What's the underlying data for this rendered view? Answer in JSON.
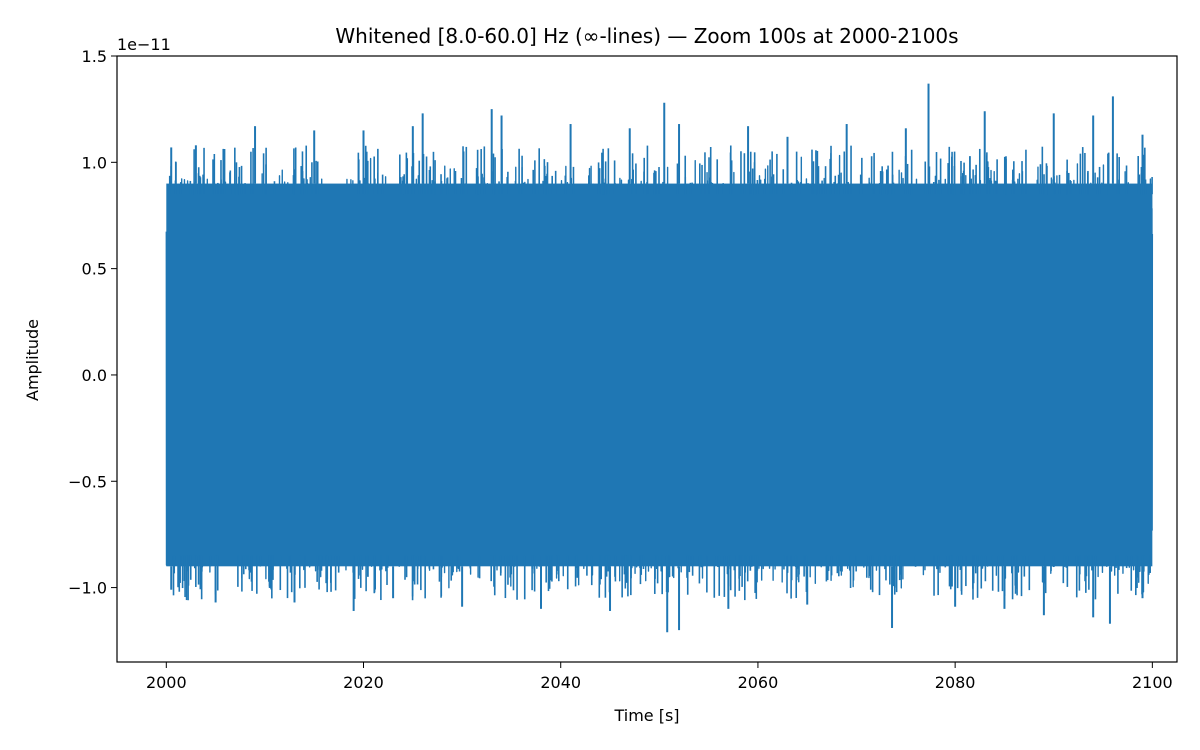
{
  "chart_data": {
    "type": "line",
    "title": "Whitened [8.0-60.0] Hz (∞-lines) — Zoom 100s at 2000-2100s",
    "xlabel": "Time [s]",
    "ylabel": "Amplitude",
    "offset_label": "1e−11",
    "xlim": [
      1995,
      2102.5
    ],
    "ylim": [
      -1.35,
      1.5
    ],
    "y_scale_factor": "1e-11",
    "xticks": [
      2000,
      2020,
      2040,
      2060,
      2080,
      2100
    ],
    "xtick_labels": [
      "2000",
      "2020",
      "2040",
      "2060",
      "2080",
      "2100"
    ],
    "yticks": [
      -1.0,
      -0.5,
      0.0,
      0.5,
      1.0,
      1.5
    ],
    "ytick_labels": [
      "−1.0",
      "−0.5",
      "0.0",
      "0.5",
      "1.0",
      "1.5"
    ],
    "grid": false,
    "series": [
      {
        "color": "#1f77b4",
        "x_range": [
          2000,
          2100
        ],
        "typical_envelope": [
          -0.9,
          0.9
        ],
        "peaks": [
          {
            "x": 2000.5,
            "y": 1.07
          },
          {
            "x": 2003,
            "y": 1.08
          },
          {
            "x": 2009,
            "y": 1.17
          },
          {
            "x": 2015,
            "y": 1.15
          },
          {
            "x": 2020,
            "y": 1.15
          },
          {
            "x": 2025,
            "y": 1.17
          },
          {
            "x": 2026,
            "y": 1.23
          },
          {
            "x": 2033,
            "y": 1.25
          },
          {
            "x": 2034,
            "y": 1.22
          },
          {
            "x": 2041,
            "y": 1.18
          },
          {
            "x": 2047,
            "y": 1.16
          },
          {
            "x": 2050.5,
            "y": 1.28
          },
          {
            "x": 2052,
            "y": 1.18
          },
          {
            "x": 2059,
            "y": 1.17
          },
          {
            "x": 2063,
            "y": 1.12
          },
          {
            "x": 2069,
            "y": 1.18
          },
          {
            "x": 2075,
            "y": 1.16
          },
          {
            "x": 2077.3,
            "y": 1.37
          },
          {
            "x": 2083,
            "y": 1.24
          },
          {
            "x": 2090,
            "y": 1.23
          },
          {
            "x": 2094,
            "y": 1.22
          },
          {
            "x": 2096,
            "y": 1.31
          },
          {
            "x": 2099,
            "y": 1.13
          }
        ],
        "troughs": [
          {
            "x": 2000.5,
            "y": -1.01
          },
          {
            "x": 2005,
            "y": -1.07
          },
          {
            "x": 2013,
            "y": -1.07
          },
          {
            "x": 2019,
            "y": -1.11
          },
          {
            "x": 2023,
            "y": -1.05
          },
          {
            "x": 2030,
            "y": -1.09
          },
          {
            "x": 2038,
            "y": -1.1
          },
          {
            "x": 2045,
            "y": -1.11
          },
          {
            "x": 2050.8,
            "y": -1.21
          },
          {
            "x": 2052,
            "y": -1.2
          },
          {
            "x": 2057,
            "y": -1.1
          },
          {
            "x": 2065,
            "y": -1.08
          },
          {
            "x": 2073.6,
            "y": -1.19
          },
          {
            "x": 2080,
            "y": -1.09
          },
          {
            "x": 2085,
            "y": -1.1
          },
          {
            "x": 2089,
            "y": -1.13
          },
          {
            "x": 2094,
            "y": -1.14
          },
          {
            "x": 2095.7,
            "y": -1.17
          },
          {
            "x": 2099,
            "y": -1.05
          }
        ]
      }
    ]
  }
}
